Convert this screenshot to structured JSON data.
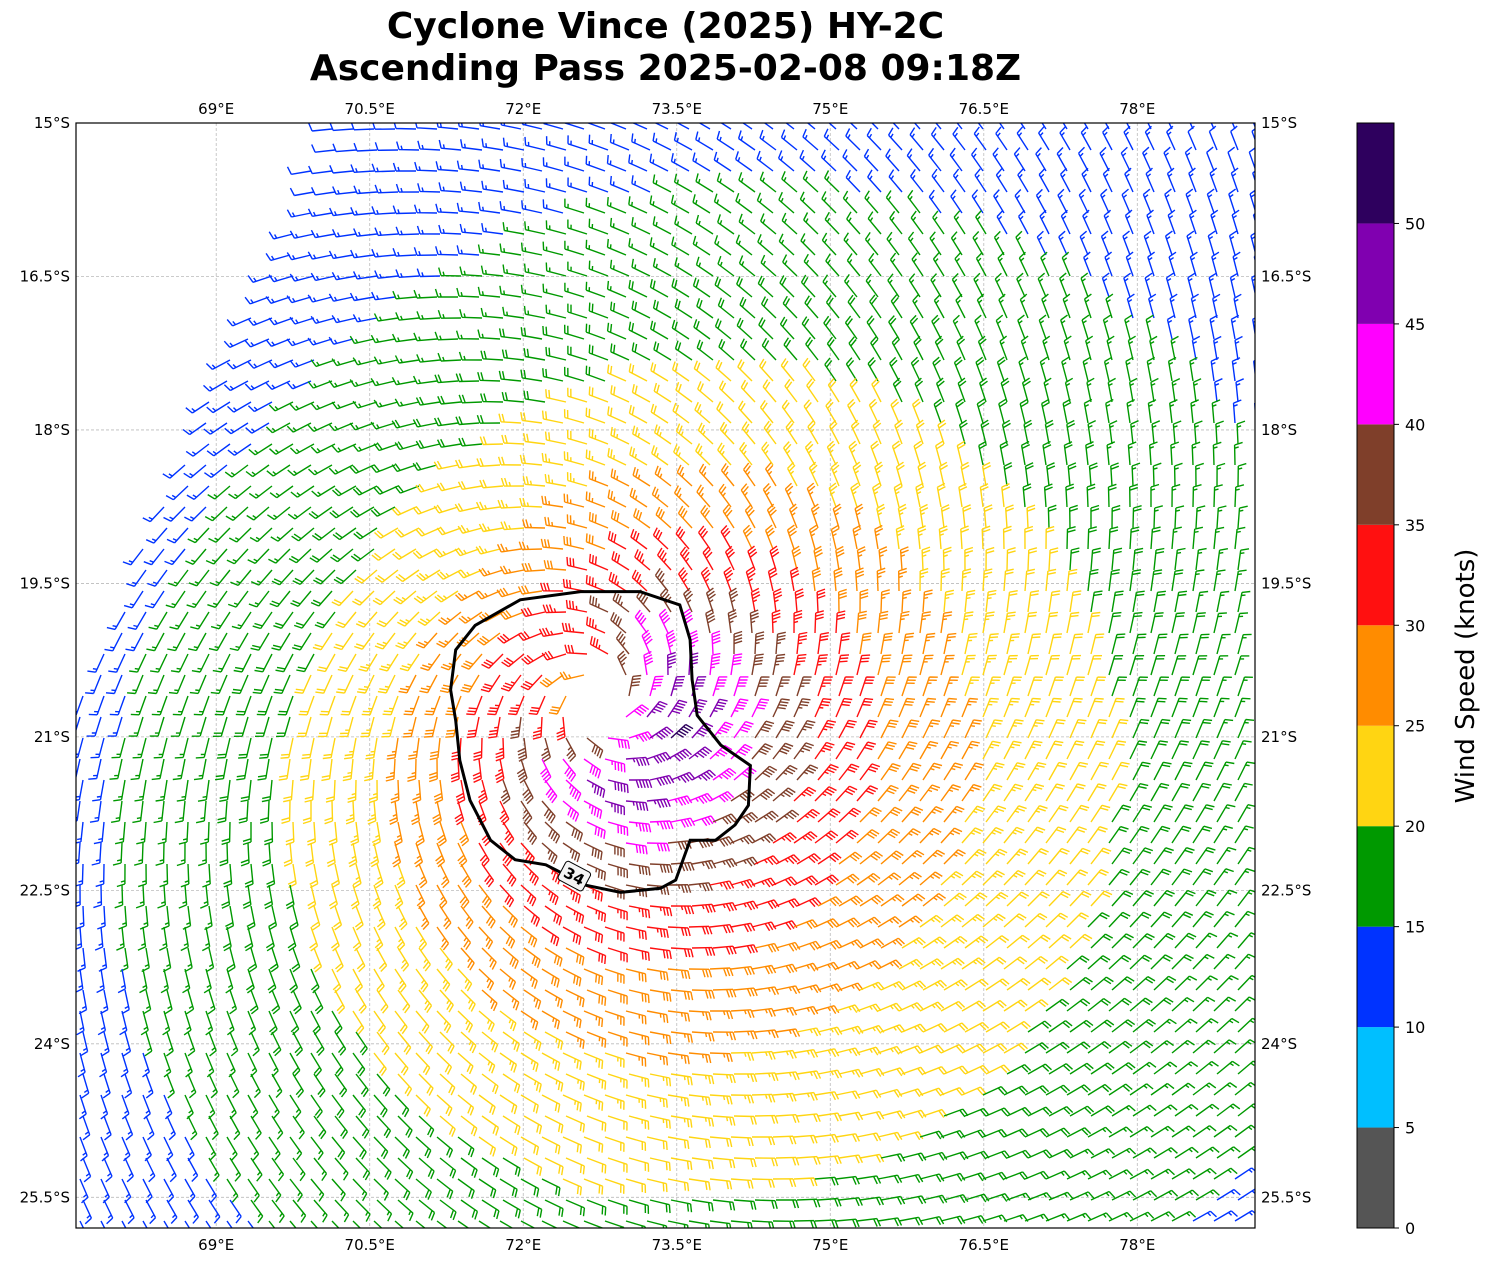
{
  "title": {
    "line1": "Cyclone Vince (2025) HY-2C",
    "line2": "Ascending Pass 2025-02-08 09:18Z"
  },
  "chart_data": {
    "type": "wind-barb map",
    "extent": {
      "lon": [
        67.63,
        79.15
      ],
      "lat": [
        -25.8,
        -15.0
      ]
    },
    "lon_ticks": [
      69,
      70.5,
      72,
      73.5,
      75,
      76.5,
      78
    ],
    "lon_tick_labels": [
      "69°E",
      "70.5°E",
      "72°E",
      "73.5°E",
      "75°E",
      "76.5°E",
      "78°E"
    ],
    "lat_ticks": [
      -15,
      -16.5,
      -18,
      -19.5,
      -21,
      -22.5,
      -24,
      -25.5
    ],
    "lat_tick_labels": [
      "15°S",
      "16.5°S",
      "18°S",
      "19.5°S",
      "21°S",
      "22.5°S",
      "24°S",
      "25.5°S"
    ],
    "grid": true,
    "storm_center": {
      "lon": 72.75,
      "lat": -20.64
    },
    "contour": {
      "label": "34",
      "level_kt": 34,
      "points": [
        [
          71.29,
          -20.54
        ],
        [
          71.34,
          -20.15
        ],
        [
          71.53,
          -19.91
        ],
        [
          71.97,
          -19.66
        ],
        [
          72.56,
          -19.58
        ],
        [
          73.14,
          -19.58
        ],
        [
          73.53,
          -19.71
        ],
        [
          73.63,
          -20.05
        ],
        [
          73.65,
          -20.44
        ],
        [
          73.7,
          -20.79
        ],
        [
          73.93,
          -21.08
        ],
        [
          74.22,
          -21.28
        ],
        [
          74.2,
          -21.67
        ],
        [
          74.07,
          -21.86
        ],
        [
          73.88,
          -22.01
        ],
        [
          73.63,
          -22.01
        ],
        [
          73.49,
          -22.4
        ],
        [
          73.34,
          -22.48
        ],
        [
          72.95,
          -22.52
        ],
        [
          72.61,
          -22.45
        ],
        [
          72.22,
          -22.25
        ],
        [
          71.92,
          -22.2
        ],
        [
          71.68,
          -22.01
        ],
        [
          71.48,
          -21.62
        ],
        [
          71.38,
          -21.23
        ],
        [
          71.34,
          -20.84
        ],
        [
          71.29,
          -20.54
        ]
      ]
    },
    "colorbar": {
      "label": "Wind Speed (knots)",
      "range": [
        0,
        55
      ],
      "ticks": [
        0,
        5,
        10,
        15,
        20,
        25,
        30,
        35,
        40,
        45,
        50
      ],
      "bins": [
        {
          "min": 0,
          "max": 5,
          "color": "#555555"
        },
        {
          "min": 5,
          "max": 10,
          "color": "#00bfff"
        },
        {
          "min": 10,
          "max": 15,
          "color": "#0033ff"
        },
        {
          "min": 15,
          "max": 20,
          "color": "#009900"
        },
        {
          "min": 20,
          "max": 25,
          "color": "#ffd512"
        },
        {
          "min": 25,
          "max": 30,
          "color": "#ff8c00"
        },
        {
          "min": 30,
          "max": 35,
          "color": "#ff1010"
        },
        {
          "min": 35,
          "max": 40,
          "color": "#7f3f2a"
        },
        {
          "min": 40,
          "max": 45,
          "color": "#ff00ff"
        },
        {
          "min": 45,
          "max": 50,
          "color": "#8000b0"
        },
        {
          "min": 50,
          "max": 55,
          "color": "#2e005e"
        }
      ]
    }
  }
}
